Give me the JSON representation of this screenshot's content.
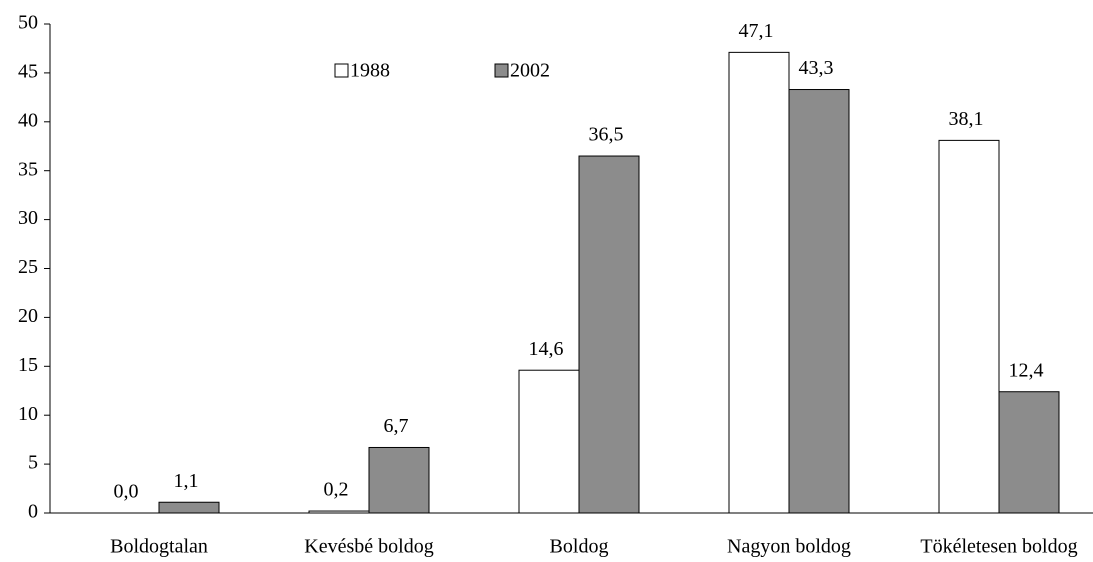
{
  "chart_data": {
    "type": "bar",
    "categories": [
      "Boldogtalan",
      "Kevésbé boldog",
      "Boldog",
      "Nagyon boldog",
      "Tökéletesen boldog"
    ],
    "series": [
      {
        "name": "1988",
        "color": "#ffffff",
        "values": [
          0.0,
          0.2,
          14.6,
          47.1,
          38.1
        ],
        "value_labels": [
          "0,0",
          "0,2",
          "14,6",
          "47,1",
          "38,1"
        ]
      },
      {
        "name": "2002",
        "color": "#8c8c8c",
        "values": [
          1.1,
          6.7,
          36.5,
          43.3,
          12.4
        ],
        "value_labels": [
          "1,1",
          "6,7",
          "36,5",
          "43,3",
          "12,4"
        ]
      }
    ],
    "ylim": [
      0,
      50
    ],
    "yticks": [
      0,
      5,
      10,
      15,
      20,
      25,
      30,
      35,
      40,
      45,
      50
    ],
    "grid": false
  }
}
